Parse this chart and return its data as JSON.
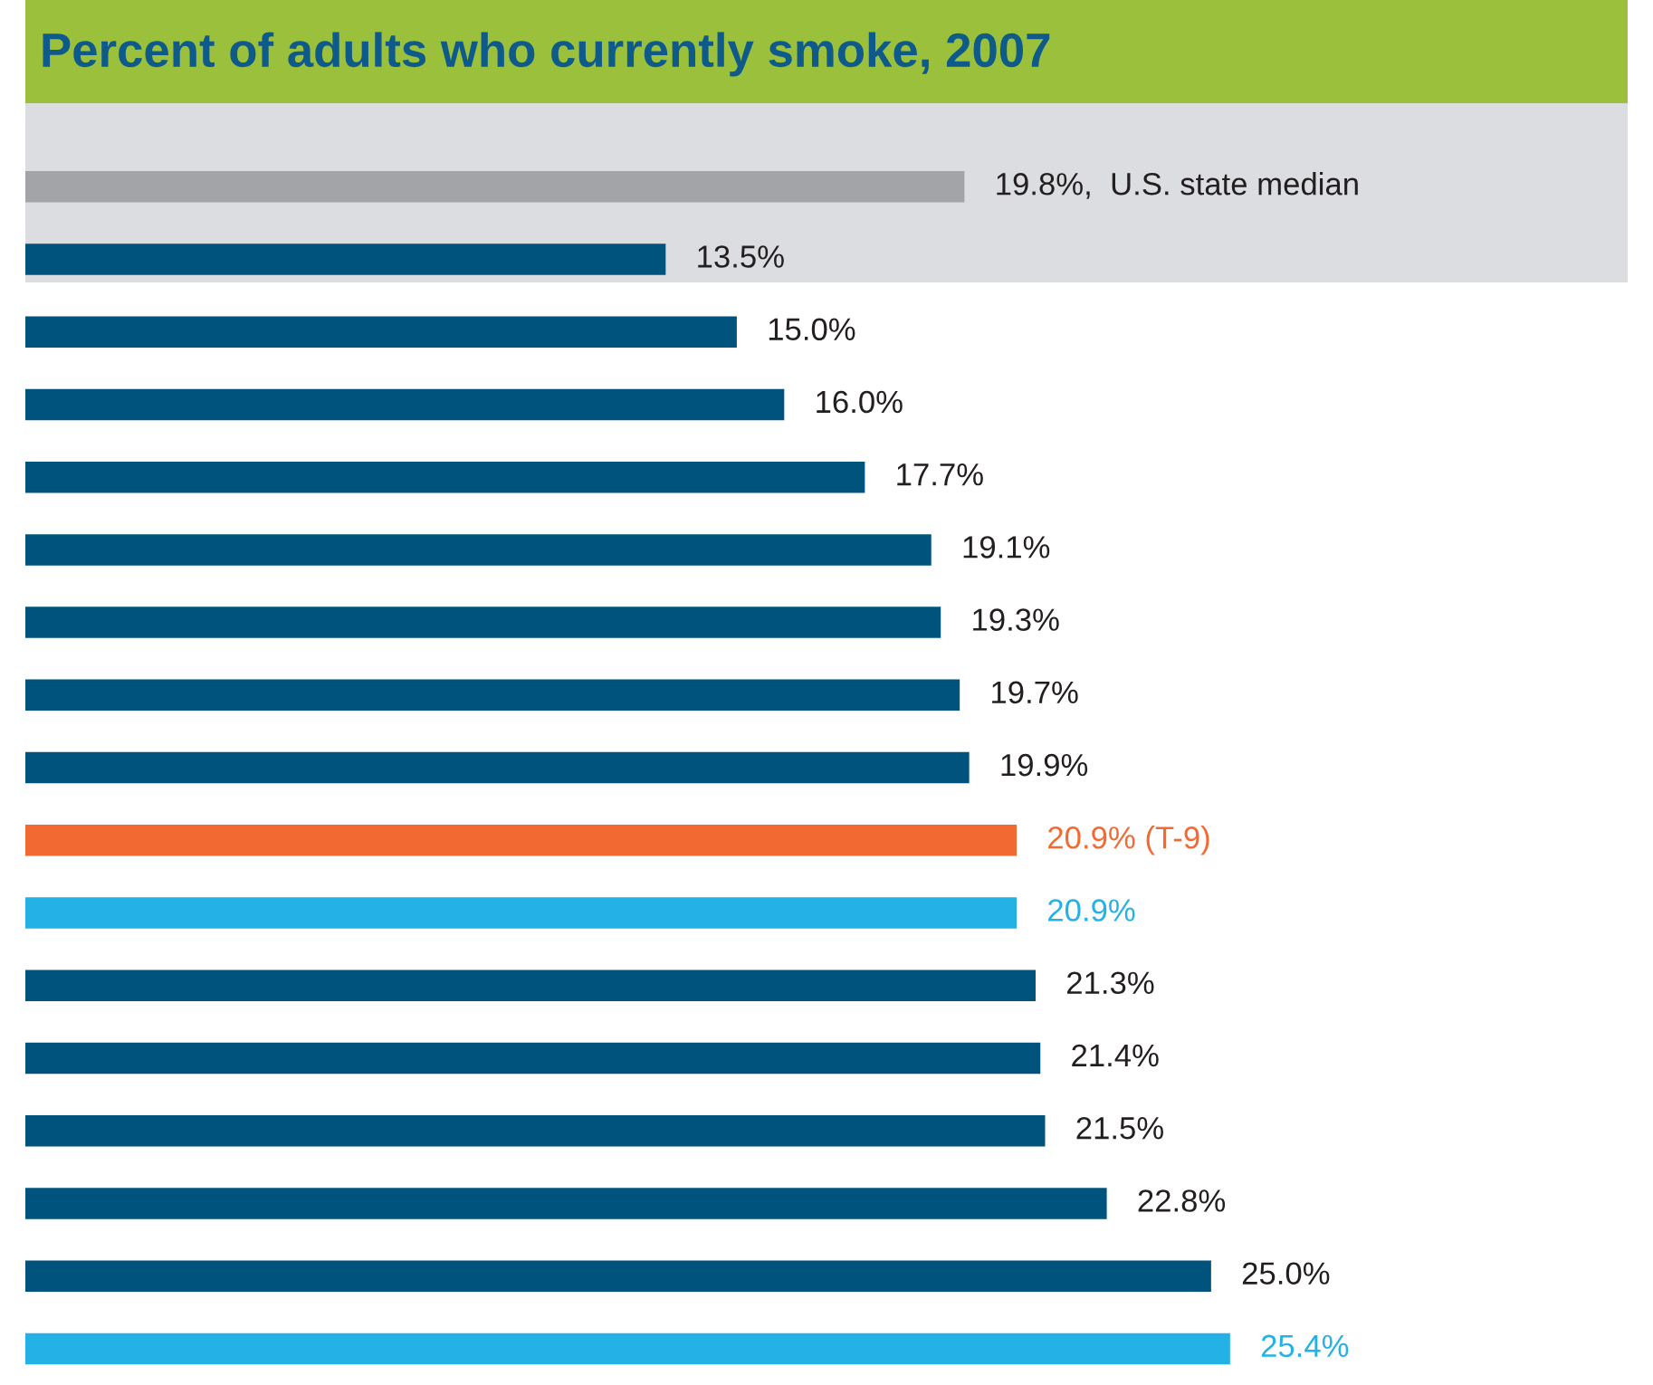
{
  "chart_data": {
    "type": "bar",
    "orientation": "horizontal",
    "title": "Percent of adults who currently smoke, 2007",
    "categories": [
      null,
      null,
      null,
      null,
      null,
      null,
      null,
      null,
      null,
      null,
      null,
      null,
      null,
      null,
      null,
      null,
      null
    ],
    "values": [
      19.8,
      13.5,
      15.0,
      16.0,
      17.7,
      19.1,
      19.3,
      19.7,
      19.9,
      20.9,
      20.9,
      21.3,
      21.4,
      21.5,
      22.8,
      25.0,
      25.4
    ],
    "colors": [
      "#a3a4a8",
      "#00537c",
      "#00537c",
      "#00537c",
      "#00537c",
      "#00537c",
      "#00537c",
      "#00537c",
      "#00537c",
      "#f26a32",
      "#23b1e6",
      "#00537c",
      "#00537c",
      "#00537c",
      "#00537c",
      "#00537c",
      "#23b1e6"
    ],
    "value_labels": [
      "19.8%,  U.S. state median",
      "13.5%",
      "15.0%",
      "16.0%",
      "17.7%",
      "19.1%",
      "19.3%",
      "19.7%",
      "19.9%",
      "20.9% (T-9)",
      "20.9%",
      "21.3%",
      "21.4%",
      "21.5%",
      "22.8%",
      "25.0%",
      "25.4%"
    ]
  }
}
